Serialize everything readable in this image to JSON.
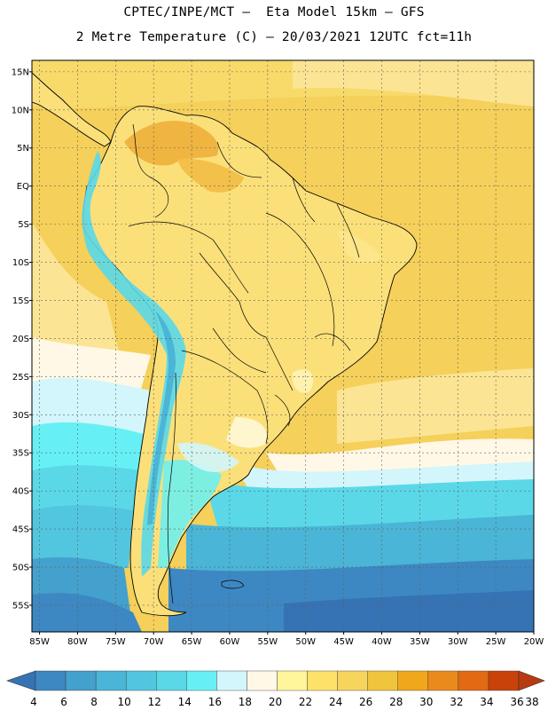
{
  "title": {
    "line1": "CPTEC/INPE/MCT –  Eta Model 15km – GFS",
    "line2": "2 Metre Temperature (C) – 20/03/2021 12UTC fct=11h"
  },
  "map": {
    "lat_range": [
      -58.5,
      16.5
    ],
    "lon_range": [
      -86,
      -20
    ],
    "lat_ticks": [
      {
        "value": 15,
        "label": "15N"
      },
      {
        "value": 10,
        "label": "10N"
      },
      {
        "value": 5,
        "label": "5N"
      },
      {
        "value": 0,
        "label": "EQ"
      },
      {
        "value": -5,
        "label": "5S"
      },
      {
        "value": -10,
        "label": "10S"
      },
      {
        "value": -15,
        "label": "15S"
      },
      {
        "value": -20,
        "label": "20S"
      },
      {
        "value": -25,
        "label": "25S"
      },
      {
        "value": -30,
        "label": "30S"
      },
      {
        "value": -35,
        "label": "35S"
      },
      {
        "value": -40,
        "label": "40S"
      },
      {
        "value": -45,
        "label": "45S"
      },
      {
        "value": -50,
        "label": "50S"
      },
      {
        "value": -55,
        "label": "55S"
      }
    ],
    "lon_ticks": [
      {
        "value": -85,
        "label": "85W"
      },
      {
        "value": -80,
        "label": "80W"
      },
      {
        "value": -75,
        "label": "75W"
      },
      {
        "value": -70,
        "label": "70W"
      },
      {
        "value": -65,
        "label": "65W"
      },
      {
        "value": -60,
        "label": "60W"
      },
      {
        "value": -55,
        "label": "55W"
      },
      {
        "value": -50,
        "label": "50W"
      },
      {
        "value": -45,
        "label": "45W"
      },
      {
        "value": -40,
        "label": "40W"
      },
      {
        "value": -35,
        "label": "35W"
      },
      {
        "value": -30,
        "label": "30W"
      },
      {
        "value": -25,
        "label": "25W"
      },
      {
        "value": -20,
        "label": "20W"
      }
    ]
  },
  "colorbar": {
    "labels": [
      "4",
      "6",
      "8",
      "10",
      "12",
      "14",
      "16",
      "18",
      "20",
      "22",
      "24",
      "26",
      "28",
      "30",
      "32",
      "34",
      "36",
      "38"
    ],
    "colors": [
      "#3573b4",
      "#3d88c2",
      "#44a0cc",
      "#4ab5d6",
      "#52c5df",
      "#5ad8e8",
      "#66f0f5",
      "#d2f6fb",
      "#fff8e6",
      "#fff59a",
      "#fde26a",
      "#f7d45c",
      "#f0c43c",
      "#f1a71c",
      "#ea8a1c",
      "#e26a12",
      "#c8420a",
      "#b83a10"
    ]
  },
  "colors": {
    "land_outline": "#000000",
    "grid": "#606060"
  }
}
